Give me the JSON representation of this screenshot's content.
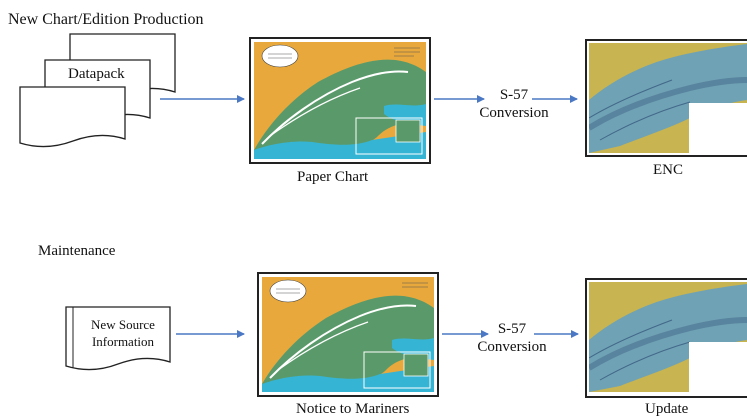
{
  "section_top": {
    "title": "New Chart/Edition Production"
  },
  "section_bottom": {
    "title": "Maintenance"
  },
  "top_row": {
    "doc_stack_label": "Datapack",
    "paper_chart_caption": "Paper Chart",
    "conversion": {
      "line1": "S-57",
      "line2": "Conversion"
    },
    "enc_caption": "ENC"
  },
  "bottom_row": {
    "doc_label": {
      "line1": "New Source",
      "line2": "Information"
    },
    "notice_caption": "Notice to Mariners",
    "conversion": {
      "line1": "S-57",
      "line2": "Conversion"
    },
    "update_caption": "Update"
  },
  "colors": {
    "arrow": "#4a78c4",
    "land": "#e8a83c",
    "sea_green": "#5a9a6a",
    "sea_blue": "#36b4d4",
    "enc_land": "#c8b450",
    "enc_sea": "#6fa2b4"
  },
  "icons": [
    "document-stack-icon",
    "document-icon",
    "arrow-right-icon",
    "nautical-chart-thumbnail",
    "enc-thumbnail"
  ]
}
